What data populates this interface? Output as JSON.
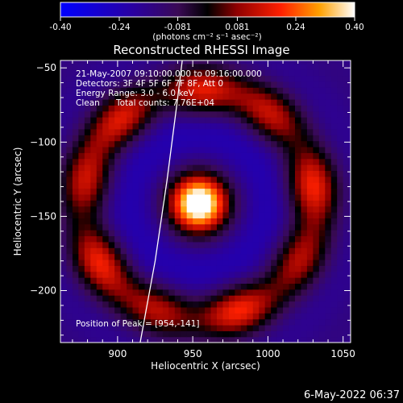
{
  "colorbar": {
    "ticks": [
      "-0.40",
      "-0.24",
      "-0.081",
      "0.081",
      "0.24",
      "0.40"
    ],
    "tick_values": [
      -0.4,
      -0.24,
      -0.081,
      0.081,
      0.24,
      0.4
    ],
    "range": [
      -0.4,
      0.4
    ],
    "unit_label": "(photons cm⁻² s⁻¹ asec⁻²)"
  },
  "chart_data": {
    "type": "heatmap",
    "title": "Reconstructed RHESSI Image",
    "xlabel": "Heliocentric X (arcsec)",
    "ylabel": "Heliocentric Y (arcsec)",
    "xlim": [
      862,
      1055
    ],
    "ylim": [
      -235,
      -45
    ],
    "xticks": [
      900,
      950,
      1000,
      1050
    ],
    "yticks": [
      -50,
      -100,
      -150,
      -200
    ],
    "peak": [
      954,
      -141
    ],
    "ring_radius_arcsec": 77,
    "ring_width_arcsec": 12,
    "annotations": {
      "time_range": "21-May-2007 09:10:00.000 to 09:16:00.000",
      "detectors": "Detectors: 3F 4F 5F 6F 7F 8F, Att 0",
      "energy": "Energy Range: 3.0 - 6.0 keV",
      "clean": "Clean",
      "total_counts": "Total counts: 7.76E+04",
      "position_of_peak": "Position of Peak = [954,-141]"
    },
    "limb_curve": [
      [
        915,
        -235
      ],
      [
        925,
        -180
      ],
      [
        933,
        -125
      ],
      [
        940,
        -70
      ],
      [
        943,
        -45
      ]
    ]
  },
  "timestamp": "6-May-2022 06:37"
}
